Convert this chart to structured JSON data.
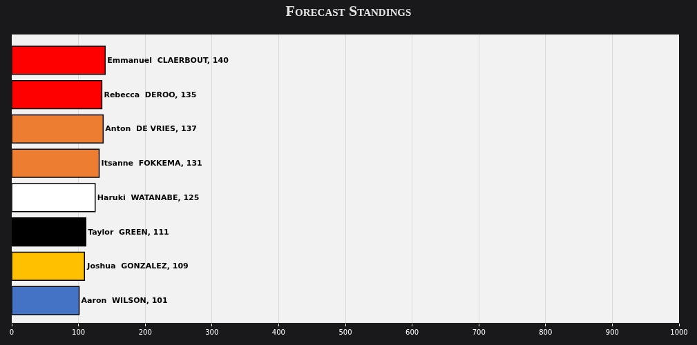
{
  "chart_data": {
    "type": "bar",
    "orientation": "horizontal",
    "title": "Forecast Standings",
    "categories": [
      null,
      null,
      null,
      null,
      null,
      null,
      null,
      null
    ],
    "values": [
      140,
      135,
      137,
      131,
      125,
      111,
      109,
      101
    ],
    "value_labels": [
      "Emmanuel  CLAERBOUT, 140",
      "Rebecca  DEROO, 135",
      "Anton  DE VRIES, 137",
      "Itsanne  FOKKEMA, 131",
      "Haruki  WATANABE, 125",
      "Taylor  GREEN, 111",
      "Joshua  GONZALEZ, 109",
      "Aaron  WILSON, 101"
    ],
    "colors": [
      "#ff0000",
      "#ff0000",
      "#ed7d31",
      "#ed7d31",
      "#ffffff",
      "#000000",
      "#ffc000",
      "#4472c4"
    ],
    "xlim": [
      0,
      1000
    ],
    "xticks": [
      0,
      100,
      200,
      300,
      400,
      500,
      600,
      700,
      800,
      900,
      1000
    ],
    "grid": "x",
    "legend": false,
    "tick_labels": "x"
  }
}
